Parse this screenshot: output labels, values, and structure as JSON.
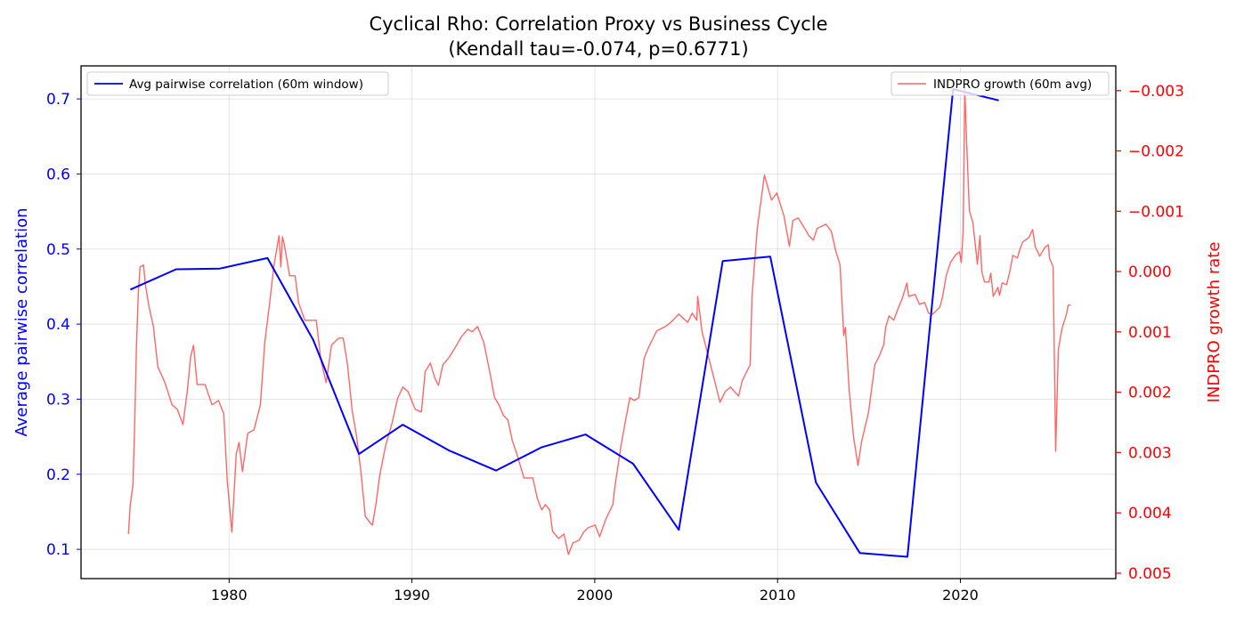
{
  "chart_data": {
    "type": "line",
    "title": "Cyclical Rho: Correlation Proxy vs Business Cycle",
    "subtitle": "(Kendall tau=-0.074, p=0.6771)",
    "xlabel": "",
    "xlim": [
      1971.9,
      2028.5
    ],
    "xticks": [
      1980,
      1990,
      2000,
      2010,
      2020
    ],
    "grid": true,
    "left_axis": {
      "label": "Average pairwise correlation",
      "color": "#0000ff",
      "ylim": [
        0.061,
        0.744
      ],
      "ticks": [
        0.1,
        0.2,
        0.3,
        0.4,
        0.5,
        0.6,
        0.7
      ],
      "tick_labels": [
        "0.1",
        "0.2",
        "0.3",
        "0.4",
        "0.5",
        "0.6",
        "0.7"
      ]
    },
    "right_axis": {
      "label": "INDPRO growth rate",
      "color": "#ff0000",
      "inverted": true,
      "ylim": [
        -0.00341,
        0.00509
      ],
      "ticks": [
        -0.003,
        -0.002,
        -0.001,
        0,
        0.001,
        0.002,
        0.003,
        0.004,
        0.005
      ],
      "tick_labels": [
        "−0.003",
        "−0.002",
        "−0.001",
        "0.000",
        "0.001",
        "0.002",
        "0.003",
        "0.004",
        "0.005"
      ]
    },
    "series": [
      {
        "name": "Avg pairwise correlation (60m window)",
        "axis": "left",
        "color": "#0000ff",
        "legend": "top-left",
        "points": [
          [
            1974.6,
            0.446
          ],
          [
            1977.1,
            0.473
          ],
          [
            1979.5,
            0.474
          ],
          [
            1982.1,
            0.488
          ],
          [
            1984.6,
            0.379
          ],
          [
            1987.1,
            0.227
          ],
          [
            1989.5,
            0.266
          ],
          [
            1992.0,
            0.232
          ],
          [
            1994.6,
            0.205
          ],
          [
            1997.1,
            0.236
          ],
          [
            1999.5,
            0.253
          ],
          [
            2002.1,
            0.214
          ],
          [
            2004.6,
            0.126
          ],
          [
            2007.0,
            0.484
          ],
          [
            2009.6,
            0.49
          ],
          [
            2012.1,
            0.189
          ],
          [
            2014.5,
            0.095
          ],
          [
            2017.1,
            0.09
          ],
          [
            2019.6,
            0.713
          ],
          [
            2022.1,
            0.698
          ]
        ]
      },
      {
        "name": "INDPRO growth (60m avg)",
        "axis": "right",
        "color": "#ff0000",
        "legend": "top-right",
        "points": [
          [
            1974.49,
            0.00435
          ],
          [
            1974.59,
            0.003878
          ],
          [
            1974.74,
            0.003539
          ],
          [
            1974.84,
            0.002432
          ],
          [
            1974.93,
            0.001251
          ],
          [
            1975.03,
            0.000365
          ],
          [
            1975.13,
            -7.7e-05
          ],
          [
            1975.32,
            -0.000107
          ],
          [
            1975.42,
            0.000218
          ],
          [
            1975.62,
            0.000587
          ],
          [
            1975.86,
            0.000911
          ],
          [
            1976.1,
            0.001576
          ],
          [
            1976.49,
            0.001841
          ],
          [
            1976.88,
            0.00221
          ],
          [
            1977.17,
            0.002284
          ],
          [
            1977.47,
            0.002535
          ],
          [
            1977.71,
            0.001989
          ],
          [
            1977.9,
            0.001399
          ],
          [
            1978.05,
            0.001221
          ],
          [
            1978.25,
            0.001871
          ],
          [
            1978.68,
            0.001871
          ],
          [
            1979.07,
            0.00221
          ],
          [
            1979.42,
            0.002137
          ],
          [
            1979.71,
            0.002358
          ],
          [
            1979.9,
            0.003465
          ],
          [
            1980.15,
            0.004321
          ],
          [
            1980.39,
            0.003022
          ],
          [
            1980.54,
            0.00283
          ],
          [
            1980.73,
            0.003317
          ],
          [
            1981.02,
            0.002683
          ],
          [
            1981.36,
            0.002624
          ],
          [
            1981.71,
            0.00221
          ],
          [
            1981.95,
            0.001177
          ],
          [
            1982.19,
            0.000587
          ],
          [
            1982.44,
            -7.7e-05
          ],
          [
            1982.73,
            -0.000594
          ],
          [
            1982.83,
            -7.7e-05
          ],
          [
            1982.92,
            -0.000579
          ],
          [
            1983.02,
            -0.000446
          ],
          [
            1983.31,
            7e-05
          ],
          [
            1983.61,
            7e-05
          ],
          [
            1983.8,
            0.000513
          ],
          [
            1984.14,
            0.000808
          ],
          [
            1984.43,
            0.000808
          ],
          [
            1984.77,
            0.000808
          ],
          [
            1985.02,
            0.001472
          ],
          [
            1985.31,
            0.001841
          ],
          [
            1985.6,
            0.001221
          ],
          [
            1985.99,
            0.001103
          ],
          [
            1986.24,
            0.001103
          ],
          [
            1986.48,
            0.001546
          ],
          [
            1986.72,
            0.002284
          ],
          [
            1986.97,
            0.002727
          ],
          [
            1987.21,
            0.003317
          ],
          [
            1987.45,
            0.004055
          ],
          [
            1987.7,
            0.004159
          ],
          [
            1987.84,
            0.004203
          ],
          [
            1988.04,
            0.003834
          ],
          [
            1988.23,
            0.003391
          ],
          [
            1988.57,
            0.002875
          ],
          [
            1988.92,
            0.002506
          ],
          [
            1989.21,
            0.002107
          ],
          [
            1989.5,
            0.001915
          ],
          [
            1989.79,
            0.001989
          ],
          [
            1990.18,
            0.002284
          ],
          [
            1990.52,
            0.002328
          ],
          [
            1990.72,
            0.001664
          ],
          [
            1991.01,
            0.001517
          ],
          [
            1991.25,
            0.001768
          ],
          [
            1991.45,
            0.001886
          ],
          [
            1991.69,
            0.001546
          ],
          [
            1991.99,
            0.001443
          ],
          [
            1992.33,
            0.00128
          ],
          [
            1992.72,
            0.001074
          ],
          [
            1993.06,
            0.000956
          ],
          [
            1993.3,
            0.001
          ],
          [
            1993.59,
            0.000911
          ],
          [
            1993.93,
            0.001177
          ],
          [
            1994.23,
            0.00162
          ],
          [
            1994.52,
            0.002092
          ],
          [
            1994.76,
            0.00221
          ],
          [
            1995.01,
            0.002387
          ],
          [
            1995.25,
            0.002461
          ],
          [
            1995.49,
            0.002801
          ],
          [
            1995.74,
            0.003022
          ],
          [
            1996.13,
            0.003421
          ],
          [
            1996.47,
            0.003421
          ],
          [
            1996.61,
            0.003421
          ],
          [
            1996.86,
            0.00376
          ],
          [
            1997.1,
            0.003952
          ],
          [
            1997.3,
            0.003863
          ],
          [
            1997.54,
            0.003952
          ],
          [
            1997.69,
            0.004306
          ],
          [
            1998.03,
            0.004424
          ],
          [
            1998.32,
            0.00435
          ],
          [
            1998.56,
            0.00469
          ],
          [
            1998.81,
            0.004498
          ],
          [
            1999.15,
            0.004454
          ],
          [
            1999.39,
            0.004321
          ],
          [
            1999.63,
            0.004247
          ],
          [
            2000.02,
            0.004203
          ],
          [
            2000.27,
            0.004395
          ],
          [
            2000.61,
            0.0041
          ],
          [
            2000.99,
            0.003863
          ],
          [
            2001.1,
            0.003568
          ],
          [
            2001.44,
            0.002875
          ],
          [
            2001.68,
            0.002476
          ],
          [
            2001.92,
            0.002092
          ],
          [
            2002.17,
            0.002137
          ],
          [
            2002.41,
            0.002092
          ],
          [
            2002.7,
            0.001443
          ],
          [
            2002.95,
            0.001251
          ],
          [
            2003.39,
            0.000985
          ],
          [
            2003.87,
            0.000911
          ],
          [
            2004.17,
            0.000838
          ],
          [
            2004.6,
            0.000705
          ],
          [
            2004.85,
            0.000779
          ],
          [
            2005.09,
            0.000838
          ],
          [
            2005.33,
            0.00069
          ],
          [
            2005.58,
            0.000808
          ],
          [
            2005.63,
            0.00041
          ],
          [
            2005.87,
            0.001
          ],
          [
            2006.21,
            0.001399
          ],
          [
            2006.46,
            0.001694
          ],
          [
            2006.85,
            0.002166
          ],
          [
            2007.14,
            0.001989
          ],
          [
            2007.43,
            0.001915
          ],
          [
            2007.87,
            0.002063
          ],
          [
            2008.06,
            0.001812
          ],
          [
            2008.5,
            0.001546
          ],
          [
            2008.6,
            0.00041
          ],
          [
            2008.89,
            -0.000712
          ],
          [
            2009.28,
            -0.001598
          ],
          [
            2009.67,
            -0.001185
          ],
          [
            2009.96,
            -0.001303
          ],
          [
            2010.35,
            -0.000919
          ],
          [
            2010.65,
            -0.000417
          ],
          [
            2010.84,
            -0.000845
          ],
          [
            2011.13,
            -0.000889
          ],
          [
            2011.72,
            -0.000594
          ],
          [
            2011.96,
            -0.00052
          ],
          [
            2012.16,
            -0.000712
          ],
          [
            2012.64,
            -0.000786
          ],
          [
            2012.94,
            -0.000668
          ],
          [
            2013.18,
            -0.000343
          ],
          [
            2013.42,
            -0.000107
          ],
          [
            2013.62,
            0.001059
          ],
          [
            2013.71,
            0.000926
          ],
          [
            2013.91,
            0.001945
          ],
          [
            2014.15,
            0.002727
          ],
          [
            2014.4,
            0.003214
          ],
          [
            2014.59,
            0.00283
          ],
          [
            2014.98,
            0.002328
          ],
          [
            2015.32,
            0.001546
          ],
          [
            2015.57,
            0.001399
          ],
          [
            2015.81,
            0.001207
          ],
          [
            2015.91,
            0.000926
          ],
          [
            2016.1,
            0.000734
          ],
          [
            2016.35,
            0.000808
          ],
          [
            2016.59,
            0.000616
          ],
          [
            2016.83,
            0.000439
          ],
          [
            2017.08,
            0.000188
          ],
          [
            2017.17,
            0.00041
          ],
          [
            2017.52,
            0.00038
          ],
          [
            2017.76,
            0.000542
          ],
          [
            2018.05,
            0.000513
          ],
          [
            2018.25,
            0.00069
          ],
          [
            2018.49,
            0.000705
          ],
          [
            2018.88,
            0.000587
          ],
          [
            2019.03,
            0.00041
          ],
          [
            2019.22,
            7e-05
          ],
          [
            2019.46,
            -0.000151
          ],
          [
            2019.76,
            -0.000284
          ],
          [
            2019.95,
            -0.000328
          ],
          [
            2020.05,
            -0.000151
          ],
          [
            2020.15,
            -0.000668
          ],
          [
            2020.24,
            -0.00303
          ],
          [
            2020.34,
            -0.002144
          ],
          [
            2020.49,
            -0.001007
          ],
          [
            2020.68,
            -0.000815
          ],
          [
            2020.93,
            -0.000122
          ],
          [
            2021.07,
            -0.000594
          ],
          [
            2021.17,
            -4e-06
          ],
          [
            2021.32,
            0.000173
          ],
          [
            2021.56,
            0.000173
          ],
          [
            2021.66,
            2.6e-05
          ],
          [
            2021.8,
            0.00041
          ],
          [
            2022.05,
            0.000262
          ],
          [
            2022.14,
            0.000395
          ],
          [
            2022.29,
            0.000188
          ],
          [
            2022.53,
            0.000218
          ],
          [
            2022.73,
            -3.3e-05
          ],
          [
            2022.87,
            -0.000269
          ],
          [
            2023.12,
            -0.000225
          ],
          [
            2023.26,
            -0.000373
          ],
          [
            2023.41,
            -0.000491
          ],
          [
            2023.75,
            -0.000565
          ],
          [
            2023.95,
            -0.000697
          ],
          [
            2024.09,
            -0.000417
          ],
          [
            2024.34,
            -0.000255
          ],
          [
            2024.63,
            -0.000402
          ],
          [
            2024.82,
            -0.000446
          ],
          [
            2024.87,
            -0.000225
          ],
          [
            2025.07,
            -7.7e-05
          ],
          [
            2025.21,
            0.002978
          ],
          [
            2025.36,
            0.001295
          ],
          [
            2025.55,
            0.000956
          ],
          [
            2025.8,
            0.000705
          ],
          [
            2025.9,
            0.000557
          ],
          [
            2026.04,
            0.000557
          ]
        ]
      }
    ]
  }
}
